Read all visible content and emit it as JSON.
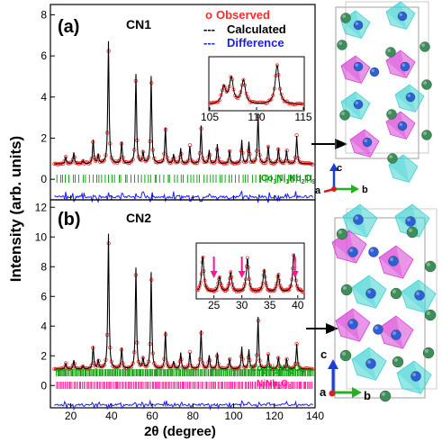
{
  "chart_data": [
    {
      "type": "line",
      "panel": "(a)",
      "sample": "CN1",
      "legend": [
        "Observed",
        "Calculated",
        "Difference"
      ],
      "legend_symbols": [
        "o",
        "---",
        "---"
      ],
      "xlim": [
        10,
        140
      ],
      "ylim": [
        -1,
        8.5
      ],
      "yticks": [
        0,
        2,
        4,
        6,
        8
      ],
      "peaks": [
        {
          "x": 17.5,
          "y": 1.1
        },
        {
          "x": 21.5,
          "y": 1.3
        },
        {
          "x": 26,
          "y": 0.9
        },
        {
          "x": 31,
          "y": 1.9
        },
        {
          "x": 33.5,
          "y": 1.2
        },
        {
          "x": 38.5,
          "y": 6.7
        },
        {
          "x": 45,
          "y": 1.8
        },
        {
          "x": 52,
          "y": 5.1
        },
        {
          "x": 55.5,
          "y": 1.3
        },
        {
          "x": 59.5,
          "y": 5.0
        },
        {
          "x": 66.5,
          "y": 2.5
        },
        {
          "x": 70.5,
          "y": 1.2
        },
        {
          "x": 74,
          "y": 1.5
        },
        {
          "x": 78.5,
          "y": 1.6
        },
        {
          "x": 84,
          "y": 2.6
        },
        {
          "x": 88,
          "y": 1.4
        },
        {
          "x": 92,
          "y": 1.7
        },
        {
          "x": 98,
          "y": 1.4
        },
        {
          "x": 104,
          "y": 1.9
        },
        {
          "x": 107.5,
          "y": 1.8
        },
        {
          "x": 112,
          "y": 3.2
        },
        {
          "x": 117,
          "y": 1.6
        },
        {
          "x": 122,
          "y": 1.5
        },
        {
          "x": 126,
          "y": 1.4
        },
        {
          "x": 131,
          "y": 2.1
        }
      ],
      "baseline": 0.75,
      "phase_label": "Co3Ni1Nb2O9",
      "phase_color": "#009900",
      "inset": {
        "xlim": [
          105,
          115
        ],
        "xticks": [
          105,
          110,
          115
        ],
        "peaks": [
          {
            "x": 106.5,
            "y": 0.5
          },
          {
            "x": 107.3,
            "y": 0.7
          },
          {
            "x": 108.6,
            "y": 0.65
          },
          {
            "x": 112.2,
            "y": 1.0
          }
        ]
      }
    },
    {
      "type": "line",
      "panel": "(b)",
      "sample": "CN2",
      "xlim": [
        10,
        140
      ],
      "ylim": [
        -1.5,
        12.5
      ],
      "yticks": [
        0,
        2,
        4,
        6,
        8,
        10,
        12
      ],
      "peaks": [
        {
          "x": 17.5,
          "y": 1.5
        },
        {
          "x": 21.5,
          "y": 1.7
        },
        {
          "x": 26,
          "y": 1.3
        },
        {
          "x": 31,
          "y": 2.6
        },
        {
          "x": 33.5,
          "y": 1.7
        },
        {
          "x": 38.5,
          "y": 10.2
        },
        {
          "x": 45,
          "y": 2.5
        },
        {
          "x": 52,
          "y": 7.9
        },
        {
          "x": 55.5,
          "y": 1.8
        },
        {
          "x": 59.5,
          "y": 7.6
        },
        {
          "x": 66.5,
          "y": 3.6
        },
        {
          "x": 70.5,
          "y": 1.6
        },
        {
          "x": 74,
          "y": 2.2
        },
        {
          "x": 78.5,
          "y": 2.2
        },
        {
          "x": 84,
          "y": 3.7
        },
        {
          "x": 88,
          "y": 2.0
        },
        {
          "x": 92,
          "y": 2.2
        },
        {
          "x": 98,
          "y": 1.8
        },
        {
          "x": 104,
          "y": 2.6
        },
        {
          "x": 107.5,
          "y": 2.4
        },
        {
          "x": 112,
          "y": 4.6
        },
        {
          "x": 117,
          "y": 2.1
        },
        {
          "x": 122,
          "y": 1.9
        },
        {
          "x": 126,
          "y": 1.8
        },
        {
          "x": 131,
          "y": 2.8
        }
      ],
      "baseline": 1.1,
      "phase_labels": [
        "Co2Ni2Nb2O9",
        "NiNb2O6"
      ],
      "phase_colors": [
        "#009900",
        "#ff1493"
      ],
      "inset": {
        "xlim": [
          22,
          41
        ],
        "xticks": [
          25,
          30,
          35,
          40
        ],
        "peaks": [
          {
            "x": 23,
            "y": 0.9
          },
          {
            "x": 26,
            "y": 0.45
          },
          {
            "x": 28,
            "y": 0.55
          },
          {
            "x": 31,
            "y": 0.85
          },
          {
            "x": 34,
            "y": 0.6
          },
          {
            "x": 36.5,
            "y": 0.5
          },
          {
            "x": 39.3,
            "y": 0.95
          }
        ],
        "markers": [
          25,
          30,
          39.5
        ]
      }
    }
  ],
  "ylabel": "Intensity (arb. units)",
  "xlabel": "2θ (degree)",
  "xticks": [
    20,
    40,
    60,
    80,
    100,
    120,
    140
  ],
  "colors": {
    "observed": "#ff2a2a",
    "calculated": "#000000",
    "difference": "#1a1aff"
  },
  "axes_labels": {
    "c": "c",
    "a": "a",
    "b": "b"
  },
  "crystal_colors": {
    "octa_cyan": "#3fd1d1",
    "octa_magenta": "#d63fd6",
    "sphere_green": "#3e8e5a",
    "sphere_blue": "#2c5fd8"
  }
}
